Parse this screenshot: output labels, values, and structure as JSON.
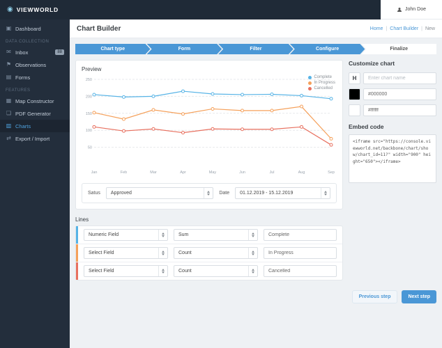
{
  "topbar": {
    "brand": "VIEWWORLD",
    "user": "John Doe"
  },
  "icons": {
    "dashboard": "▣",
    "inbox": "✉",
    "observations": "⚑",
    "forms": "▤",
    "map": "▦",
    "pdf": "❏",
    "charts": "▥",
    "export": "⇄",
    "logo": "◉"
  },
  "sidebar": {
    "dashboard": "Dashboard",
    "section_data_collection": "Data Collection",
    "inbox": "Inbox",
    "inbox_badge": "88",
    "observations": "Observations",
    "forms": "Forms",
    "section_features": "Features",
    "map_constructor": "Map Constructor",
    "pdf_generator": "PDF Generator",
    "charts": "Charts",
    "export_import": "Export / Import"
  },
  "header": {
    "title": "Chart Builder",
    "breadcrumb": {
      "home": "Home",
      "builder": "Chart Builder",
      "current": "New",
      "sep": "|"
    }
  },
  "stepper": {
    "steps": [
      "Chart type",
      "Form",
      "Filter",
      "Configure",
      "Finalize"
    ]
  },
  "preview": {
    "title": "Preview",
    "status_label": "Satus",
    "status_value": "Approved",
    "date_label": "Date",
    "date_value": "01.12.2019 - 15.12.2019"
  },
  "lines": {
    "title": "Lines",
    "rows": [
      {
        "field": "Numeric Field",
        "agg": "Sum",
        "name": "Complete",
        "color": "#56b3e6"
      },
      {
        "field": "Select Field",
        "agg": "Count",
        "name": "In Progress",
        "color": "#f5a05a"
      },
      {
        "field": "Select Field",
        "agg": "Count",
        "name": "Cancelled",
        "color": "#e8705f"
      }
    ]
  },
  "customize": {
    "title": "Customize chart",
    "style_button": "H",
    "name_placeholder": "Enter chart name",
    "black_value": "#000000",
    "white_value": "#ffffff",
    "embed_title": "Embed code",
    "embed_code": "<iframe src=\"https://console.viewworld.net/backbone/chart/show/chart_id=11?\" width=\"900\" height=\"650\"></iframe>"
  },
  "buttons": {
    "previous": "Previous step",
    "next": "Next step"
  },
  "colors": {
    "accent": "#4a97d6",
    "topbar_bg": "#1f2a37",
    "sidebar_bg": "#232e3c"
  },
  "chart_data": {
    "type": "line",
    "title": "Preview",
    "x": [
      "Jan",
      "Feb",
      "Mar",
      "Apr",
      "May",
      "Jun",
      "Jul",
      "Aug",
      "Sep"
    ],
    "series": [
      {
        "name": "Complete",
        "color": "#56b3e6",
        "values": [
          205,
          198,
          200,
          215,
          207,
          205,
          206,
          202,
          193
        ]
      },
      {
        "name": "In Progress",
        "color": "#f5a05a",
        "values": [
          152,
          133,
          160,
          148,
          163,
          158,
          158,
          170,
          75
        ]
      },
      {
        "name": "Cancelled",
        "color": "#e8705f",
        "values": [
          110,
          98,
          104,
          93,
          104,
          103,
          103,
          110,
          57
        ]
      }
    ],
    "ylim": [
      0,
      250
    ],
    "yticks": [
      50,
      100,
      150,
      200,
      250
    ],
    "grid": "dashed-horizontal",
    "legend_position": "top-right"
  }
}
